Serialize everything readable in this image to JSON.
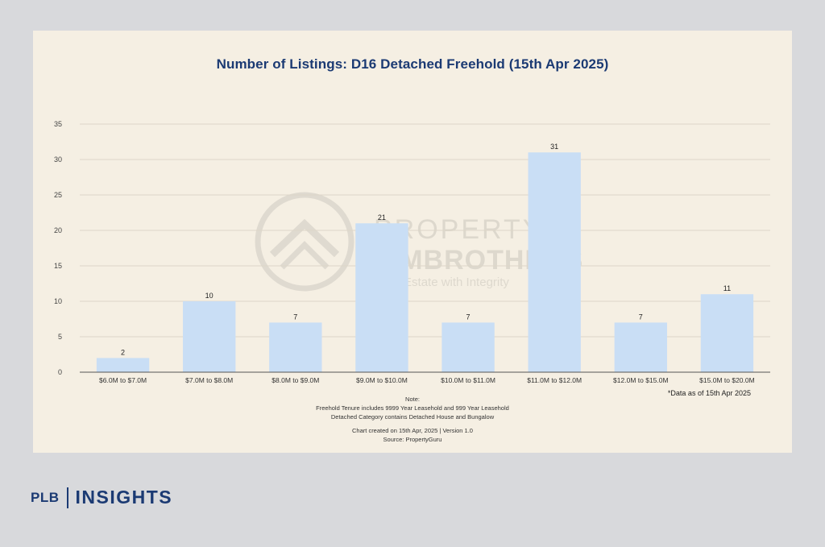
{
  "chart_data": {
    "type": "bar",
    "title": "Number of Listings: D16 Detached Freehold (15th Apr 2025)",
    "categories": [
      "$6.0M to $7.0M",
      "$7.0M to $8.0M",
      "$8.0M to $9.0M",
      "$9.0M to $10.0M",
      "$10.0M to $11.0M",
      "$11.0M to $12.0M",
      "$12.0M to $15.0M",
      "$15.0M to $20.0M"
    ],
    "values": [
      2,
      10,
      7,
      21,
      7,
      31,
      7,
      11
    ],
    "ylim": [
      0,
      35
    ],
    "yticks": [
      0,
      5,
      10,
      15,
      20,
      25,
      30,
      35
    ],
    "grid": true,
    "bar_color": "#c9def5",
    "title_color": "#1b3a73"
  },
  "as_of": "*Data as of 15th Apr 2025",
  "notes": {
    "heading": "Note:",
    "line1": "Freehold Tenure includes 9999 Year Leasehold and 999 Year Leasehold",
    "line2": "Detached Category contains Detached House and Bungalow",
    "created": "Chart created on 15th Apr, 2025 | Version 1.0",
    "source": "Source: PropertyGuru"
  },
  "watermark": {
    "line1": "PROPERTY",
    "line2": "LIMBROTHERS",
    "tagline": "Real Estate with Integrity"
  },
  "brand": {
    "plb": "PLB",
    "insights": "INSIGHTS"
  }
}
